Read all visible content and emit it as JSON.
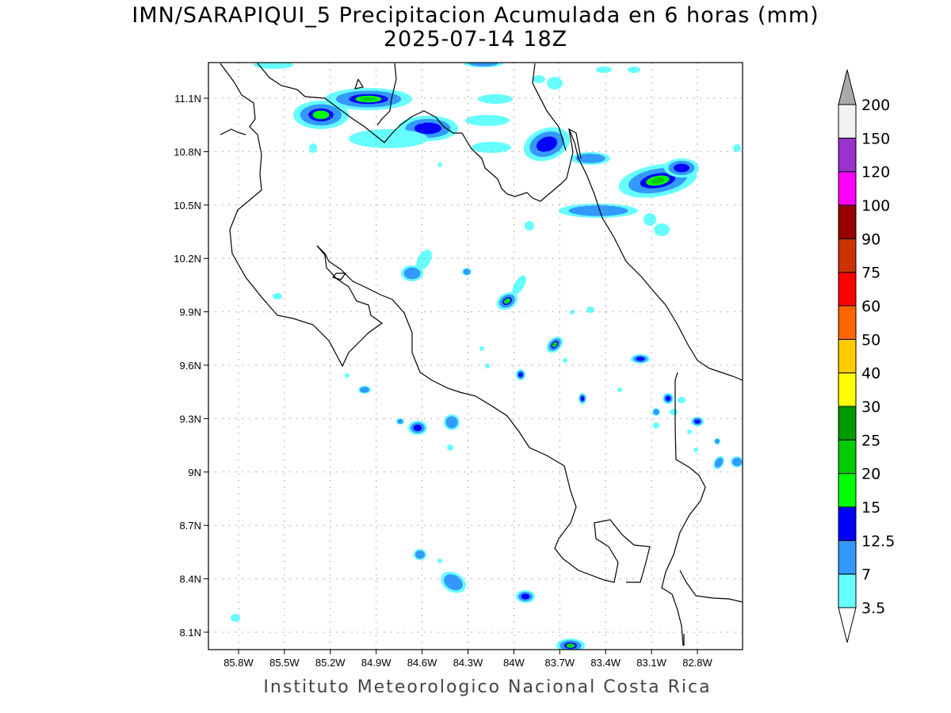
{
  "title": "IMN/SARAPIQUI_5 Precipitacion Acumulada en 6 horas (mm)",
  "subtitle": "2025-07-14 18Z",
  "footer": "Instituto Meteorologico Nacional Costa Rica",
  "map": {
    "lon_range": [
      -86.0,
      -82.5
    ],
    "lat_range": [
      8.0,
      11.3
    ],
    "lon_ticks": [
      {
        "v": -85.8,
        "label": "85.8W"
      },
      {
        "v": -85.5,
        "label": "85.5W"
      },
      {
        "v": -85.2,
        "label": "85.2W"
      },
      {
        "v": -84.9,
        "label": "84.9W"
      },
      {
        "v": -84.6,
        "label": "84.6W"
      },
      {
        "v": -84.3,
        "label": "84.3W"
      },
      {
        "v": -84.0,
        "label": "84W"
      },
      {
        "v": -83.7,
        "label": "83.7W"
      },
      {
        "v": -83.4,
        "label": "83.4W"
      },
      {
        "v": -83.1,
        "label": "83.1W"
      },
      {
        "v": -82.8,
        "label": "82.8W"
      }
    ],
    "lat_ticks": [
      {
        "v": 11.1,
        "label": "11.1N"
      },
      {
        "v": 10.8,
        "label": "10.8N"
      },
      {
        "v": 10.5,
        "label": "10.5N"
      },
      {
        "v": 10.2,
        "label": "10.2N"
      },
      {
        "v": 9.9,
        "label": "9.9N"
      },
      {
        "v": 9.6,
        "label": "9.6N"
      },
      {
        "v": 9.3,
        "label": "9.3N"
      },
      {
        "v": 9.0,
        "label": "9N"
      },
      {
        "v": 8.7,
        "label": "8.7N"
      },
      {
        "v": 8.4,
        "label": "8.4N"
      },
      {
        "v": 8.1,
        "label": "8.1N"
      }
    ]
  },
  "colorbar": {
    "labels": [
      "3.5",
      "7",
      "12.5",
      "15",
      "20",
      "25",
      "30",
      "40",
      "50",
      "60",
      "75",
      "90",
      "100",
      "120",
      "150",
      "200"
    ],
    "colors": [
      "#66ffff",
      "#3399ff",
      "#0000ff",
      "#00ff00",
      "#00cc00",
      "#009900",
      "#ffff00",
      "#ffcc00",
      "#ff6600",
      "#ff0000",
      "#cc3300",
      "#990000",
      "#ff00ff",
      "#9933cc",
      "#f2f2f2"
    ],
    "over_color": "#aaaaaa",
    "under_color": "#ffffff"
  }
}
